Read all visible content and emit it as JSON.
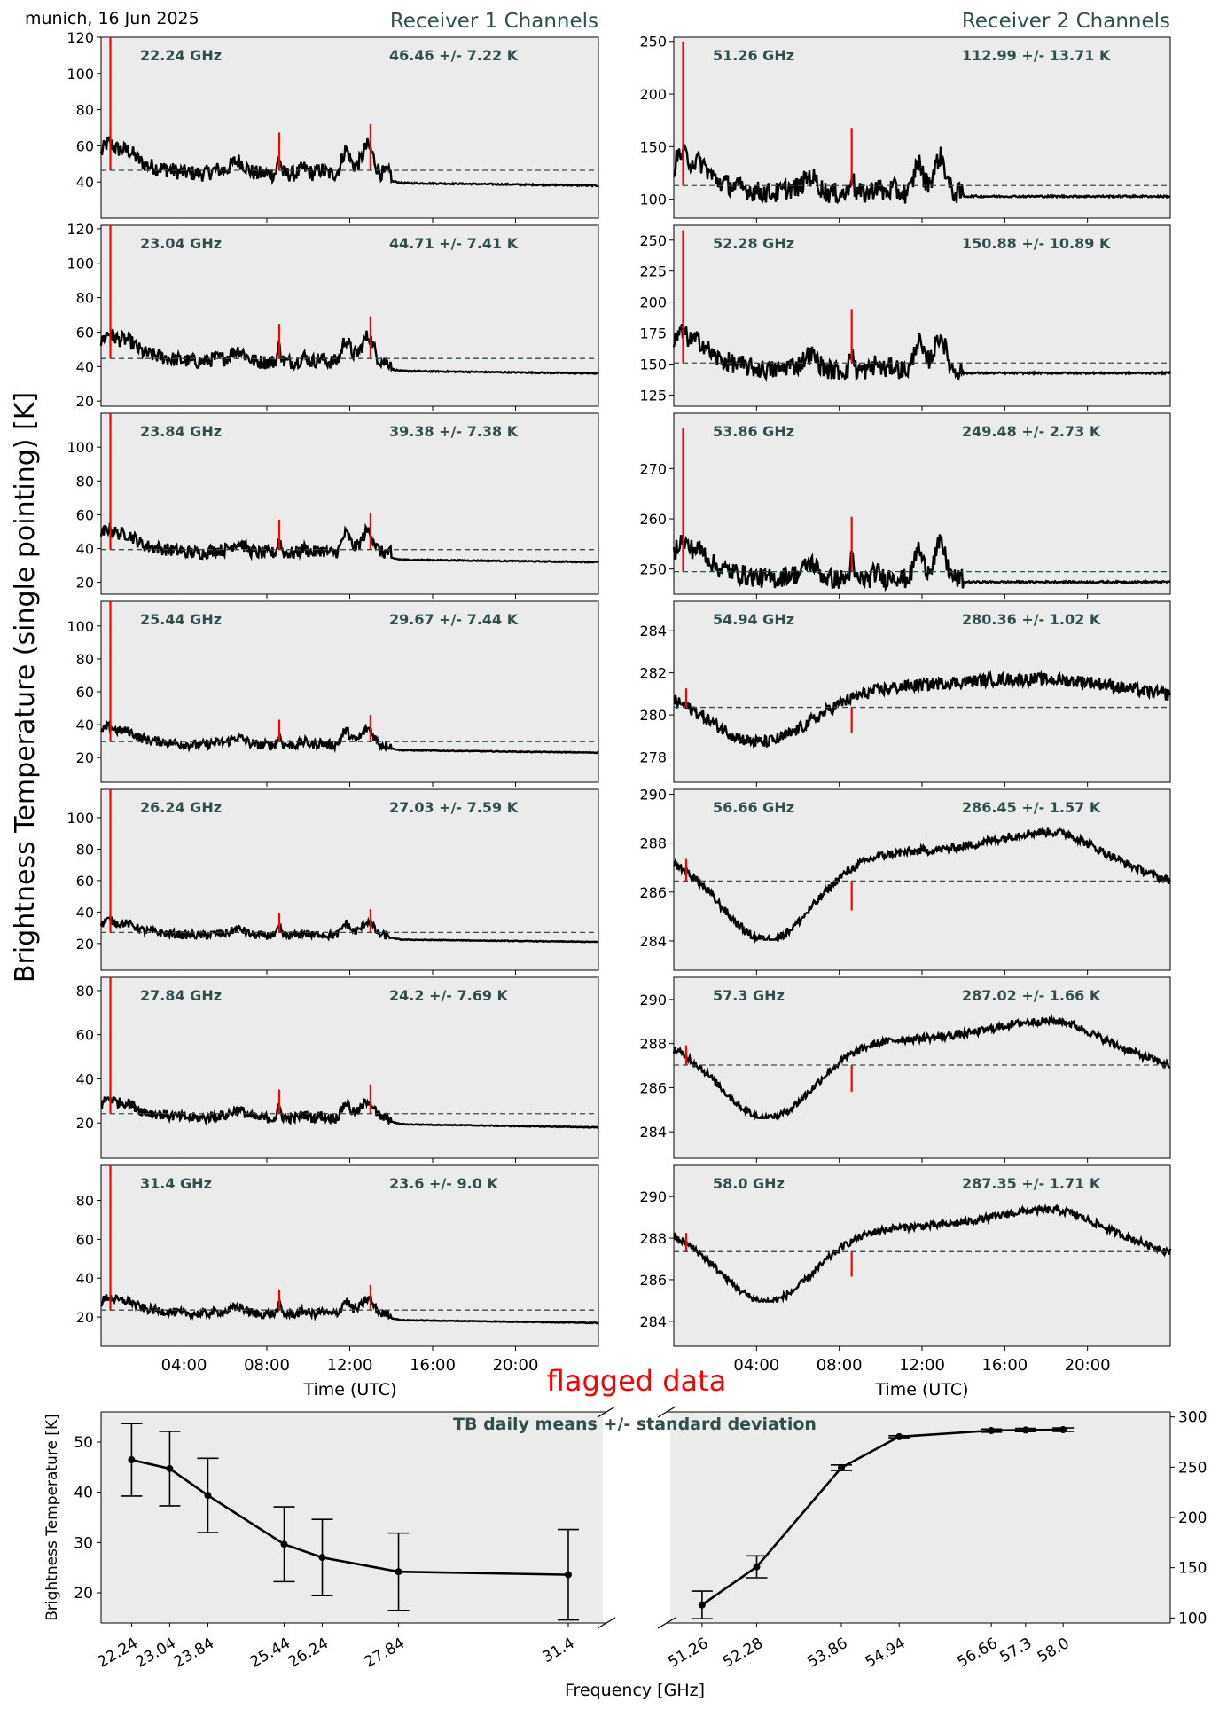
{
  "header": {
    "location_date": "munich, 16 Jun 2025",
    "receiver1_title": "Receiver 1 Channels",
    "receiver2_title": "Receiver 2 Channels",
    "ylabel_main": "Brightness Temperature (single pointing) [K]",
    "flagged_label": "flagged data",
    "flagged_color": "#ff0000"
  },
  "colors": {
    "panel_bg": "#ebebeb",
    "series": "#000000",
    "flagged": "#ff0000",
    "mean_line": "#2f4f4f",
    "annotation": "#2f4f4f"
  },
  "chart_data": [
    {
      "type": "line",
      "group": "receiver1",
      "xlabel": "Time (UTC)",
      "x_ticks": [
        "04:00",
        "08:00",
        "12:00",
        "16:00",
        "20:00"
      ],
      "x_range_hours": [
        0,
        24
      ],
      "panels": [
        {
          "freq_label": "22.24 GHz",
          "stat_label": "46.46 +/- 7.22 K",
          "mean": 46.46,
          "std": 7.22,
          "ylim": [
            20,
            120
          ],
          "yticks": [
            40,
            60,
            80,
            100,
            120
          ],
          "spike_max": 120,
          "baseline_end": 38
        },
        {
          "freq_label": "23.04 GHz",
          "stat_label": "44.71 +/- 7.41 K",
          "mean": 44.71,
          "std": 7.41,
          "ylim": [
            17,
            122
          ],
          "yticks": [
            20,
            40,
            60,
            80,
            100,
            120
          ],
          "spike_max": 122,
          "baseline_end": 36
        },
        {
          "freq_label": "23.84 GHz",
          "stat_label": "39.38 +/- 7.38 K",
          "mean": 39.38,
          "std": 7.38,
          "ylim": [
            13,
            120
          ],
          "yticks": [
            20,
            40,
            60,
            80,
            100
          ],
          "spike_max": 120,
          "baseline_end": 32
        },
        {
          "freq_label": "25.44 GHz",
          "stat_label": "29.67 +/- 7.44 K",
          "mean": 29.67,
          "std": 7.44,
          "ylim": [
            5,
            115
          ],
          "yticks": [
            20,
            40,
            60,
            80,
            100
          ],
          "spike_max": 115,
          "baseline_end": 23
        },
        {
          "freq_label": "26.24 GHz",
          "stat_label": "27.03 +/- 7.59 K",
          "mean": 27.03,
          "std": 7.59,
          "ylim": [
            3,
            118
          ],
          "yticks": [
            20,
            40,
            60,
            80,
            100
          ],
          "spike_max": 118,
          "baseline_end": 21
        },
        {
          "freq_label": "27.84 GHz",
          "stat_label": "24.2 +/- 7.69 K",
          "mean": 24.2,
          "std": 7.69,
          "ylim": [
            4,
            86
          ],
          "yticks": [
            20,
            40,
            60,
            80
          ],
          "spike_max": 86,
          "baseline_end": 18
        },
        {
          "freq_label": "31.4 GHz",
          "stat_label": "23.6 +/- 9.0 K",
          "mean": 23.6,
          "std": 9.0,
          "ylim": [
            5,
            98
          ],
          "yticks": [
            20,
            40,
            60,
            80
          ],
          "spike_max": 98,
          "baseline_end": 17
        }
      ]
    },
    {
      "type": "line",
      "group": "receiver2",
      "xlabel": "Time (UTC)",
      "x_ticks": [
        "04:00",
        "08:00",
        "12:00",
        "16:00",
        "20:00"
      ],
      "x_range_hours": [
        0,
        24
      ],
      "panels": [
        {
          "freq_label": "51.26 GHz",
          "stat_label": "112.99 +/- 13.71 K",
          "mean": 112.99,
          "std": 13.71,
          "ylim": [
            82,
            254
          ],
          "yticks": [
            100,
            150,
            200,
            250
          ],
          "shape": "peaks",
          "spike_max": 250
        },
        {
          "freq_label": "52.28 GHz",
          "stat_label": "150.88 +/- 10.89 K",
          "mean": 150.88,
          "std": 10.89,
          "ylim": [
            116,
            262
          ],
          "yticks": [
            125,
            150,
            175,
            200,
            225,
            250
          ],
          "shape": "peaks",
          "spike_max": 258
        },
        {
          "freq_label": "53.86 GHz",
          "stat_label": "249.48 +/- 2.73 K",
          "mean": 249.48,
          "std": 2.73,
          "ylim": [
            245,
            281
          ],
          "yticks": [
            250,
            260,
            270
          ],
          "shape": "peaks",
          "spike_max": 278
        },
        {
          "freq_label": "54.94 GHz",
          "stat_label": "280.36 +/- 1.02 K",
          "mean": 280.36,
          "std": 1.02,
          "ylim": [
            276.8,
            285.4
          ],
          "yticks": [
            278,
            280,
            282,
            284
          ],
          "shape": "wave54"
        },
        {
          "freq_label": "56.66 GHz",
          "stat_label": "286.45 +/- 1.57 K",
          "mean": 286.45,
          "std": 1.57,
          "ylim": [
            282.8,
            290.2
          ],
          "yticks": [
            284,
            286,
            288,
            290
          ],
          "shape": "wave"
        },
        {
          "freq_label": "57.3 GHz",
          "stat_label": "287.02 +/- 1.66 K",
          "mean": 287.02,
          "std": 1.66,
          "ylim": [
            282.8,
            291
          ],
          "yticks": [
            284,
            286,
            288,
            290
          ],
          "shape": "wave"
        },
        {
          "freq_label": "58.0 GHz",
          "stat_label": "287.35 +/- 1.71 K",
          "mean": 287.35,
          "std": 1.71,
          "ylim": [
            282.8,
            291.5
          ],
          "yticks": [
            284,
            286,
            288,
            290
          ],
          "shape": "wave"
        }
      ]
    },
    {
      "type": "line",
      "group": "daily_means",
      "title": "TB daily means +/- standard deviation",
      "xlabel": "Frequency [GHz]",
      "ylabel": "Brightness Temperature [K]",
      "left": {
        "x": [
          22.24,
          23.04,
          23.84,
          25.44,
          26.24,
          27.84,
          31.4
        ],
        "x_tick_labels": [
          "22.24",
          "23.04",
          "23.84",
          "25.44",
          "26.24",
          "27.84",
          "31.4"
        ],
        "mean": [
          46.46,
          44.71,
          39.38,
          29.67,
          27.03,
          24.2,
          23.6
        ],
        "std": [
          7.22,
          7.41,
          7.38,
          7.44,
          7.59,
          7.69,
          9.0
        ],
        "ylim": [
          14,
          56
        ],
        "yticks": [
          20,
          30,
          40,
          50
        ]
      },
      "right": {
        "x": [
          51.26,
          52.28,
          53.86,
          54.94,
          56.66,
          57.3,
          58.0
        ],
        "x_tick_labels": [
          "51.26",
          "52.28",
          "53.86",
          "54.94",
          "56.66",
          "57.3",
          "58.0"
        ],
        "mean": [
          112.99,
          150.88,
          249.48,
          280.36,
          286.45,
          287.02,
          287.35
        ],
        "std": [
          13.71,
          10.89,
          2.73,
          1.02,
          1.57,
          1.66,
          1.71
        ],
        "ylim": [
          95,
          305
        ],
        "yticks": [
          100,
          150,
          200,
          250,
          300
        ]
      }
    }
  ]
}
